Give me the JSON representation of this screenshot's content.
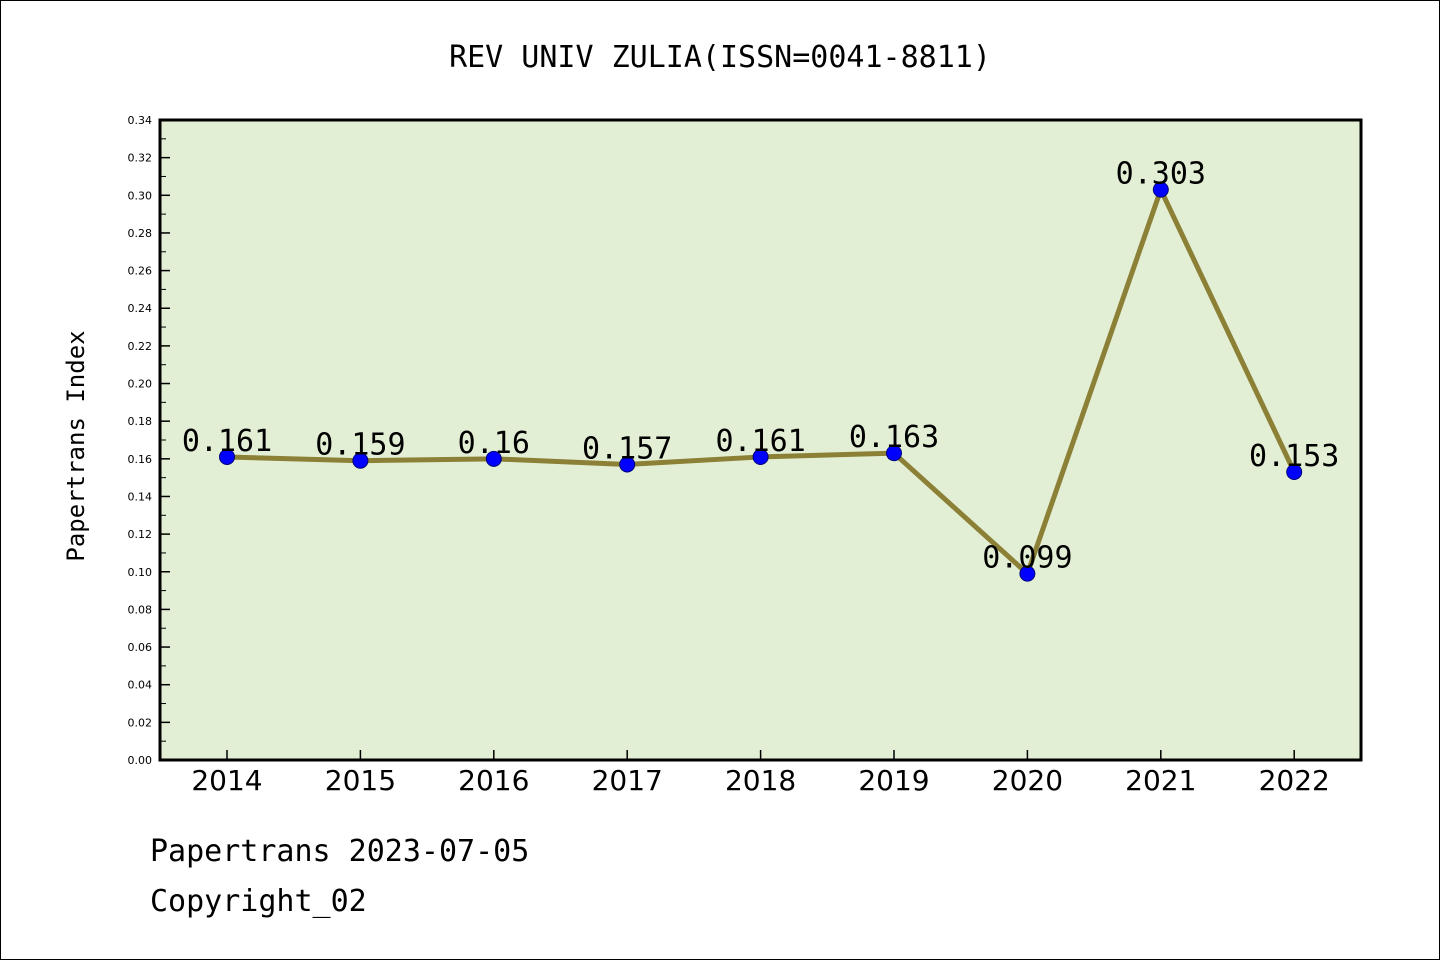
{
  "chart_data": {
    "type": "line",
    "title": "REV UNIV ZULIA(ISSN=0041-8811)",
    "xlabel": "",
    "ylabel": "Papertrans Index",
    "categories": [
      "2014",
      "2015",
      "2016",
      "2017",
      "2018",
      "2019",
      "2020",
      "2021",
      "2022"
    ],
    "values": [
      0.161,
      0.159,
      0.16,
      0.157,
      0.161,
      0.163,
      0.099,
      0.303,
      0.153
    ],
    "data_labels": [
      "0.161",
      "0.159",
      "0.16",
      "0.157",
      "0.161",
      "0.163",
      "0.099",
      "0.303",
      "0.153"
    ],
    "ylim": [
      0,
      0.34
    ],
    "yticks": [
      "0.00",
      "0.02",
      "0.04",
      "0.06",
      "0.08",
      "0.10",
      "0.12",
      "0.14",
      "0.16",
      "0.18",
      "0.20",
      "0.22",
      "0.24",
      "0.26",
      "0.28",
      "0.30",
      "0.32",
      "0.34"
    ],
    "grid": false,
    "colors": {
      "plot_background": "#e2efd5",
      "line": "#8b8035",
      "marker": "#0000ff"
    }
  },
  "footer": {
    "date_line": "Papertrans 2023-07-05",
    "copyright_line": "Copyright_02"
  }
}
